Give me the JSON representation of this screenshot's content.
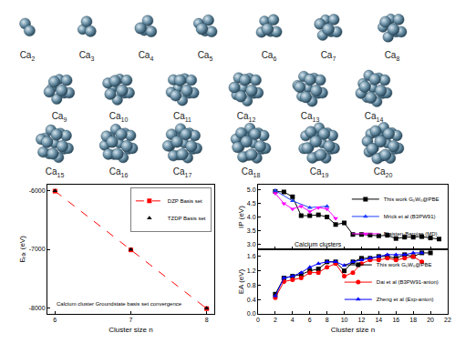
{
  "figure": {
    "clusters": [
      {
        "symbol": "Ca",
        "n": 2
      },
      {
        "symbol": "Ca",
        "n": 3
      },
      {
        "symbol": "Ca",
        "n": 4
      },
      {
        "symbol": "Ca",
        "n": 5
      },
      {
        "symbol": "Ca",
        "n": 6
      },
      {
        "symbol": "Ca",
        "n": 7
      },
      {
        "symbol": "Ca",
        "n": 8
      },
      {
        "symbol": "Ca",
        "n": 9
      },
      {
        "symbol": "Ca",
        "n": 10
      },
      {
        "symbol": "Ca",
        "n": 11
      },
      {
        "symbol": "Ca",
        "n": 12
      },
      {
        "symbol": "Ca",
        "n": 13
      },
      {
        "symbol": "Ca",
        "n": 14
      },
      {
        "symbol": "Ca",
        "n": 15
      },
      {
        "symbol": "Ca",
        "n": 16
      },
      {
        "symbol": "Ca",
        "n": 17
      },
      {
        "symbol": "Ca",
        "n": 18
      },
      {
        "symbol": "Ca",
        "n": 19
      },
      {
        "symbol": "Ca",
        "n": 20
      }
    ]
  },
  "chart_data": [
    {
      "type": "line",
      "xlabel": "Cluster size n",
      "ylabel": "Eₜₒₜ (eV)",
      "annotation": "Calcium cluster Groundstate basis set convergence",
      "x": [
        6,
        7,
        8
      ],
      "series": [
        {
          "name": "DZP Basis set",
          "color": "#ff0000",
          "marker": "square",
          "line_style": "dashed",
          "values": [
            -6010,
            -7010,
            -8010
          ]
        },
        {
          "name": "TZDP Basis set",
          "color": "#000000",
          "marker": "triangle-up",
          "line_style": "none",
          "values": [
            -6005,
            -7005,
            -8005
          ]
        }
      ],
      "xlim": [
        5.9,
        8.1
      ],
      "xticks": [
        6,
        7,
        8
      ],
      "ylim": [
        -8100,
        -5900
      ],
      "yticks": [
        -8000,
        -7000,
        -6000
      ],
      "legend": "upper right"
    },
    {
      "type": "line",
      "ylabel": "IP (eV)",
      "annotation": "Calcium clusters",
      "series": [
        {
          "name": "This work G₀W₀@PBE",
          "color": "#000000",
          "marker": "square",
          "line_style": "solid",
          "x": [
            2,
            3,
            4,
            5,
            6,
            7,
            8,
            9,
            10,
            11,
            12,
            13,
            14,
            15,
            16,
            17,
            18,
            19,
            20,
            21
          ],
          "values": [
            4.95,
            4.93,
            4.75,
            4.05,
            4.05,
            4.08,
            4.0,
            3.72,
            3.78,
            3.35,
            3.35,
            3.33,
            3.3,
            3.32,
            3.2,
            3.25,
            3.25,
            3.27,
            3.22,
            3.18
          ]
        },
        {
          "name": "Mrick et al (B3PW91)",
          "color": "#1f3fff",
          "marker": "triangle-up",
          "line_style": "solid",
          "x": [
            2,
            4,
            6,
            8
          ],
          "values": [
            4.98,
            4.6,
            4.35,
            4.4
          ]
        },
        {
          "name": "Blaisten-Barojas (MD)",
          "color": "#ff00ff",
          "marker": "triangle-down",
          "line_style": "solid",
          "x": [
            2,
            3,
            4,
            5,
            6,
            7,
            8,
            9
          ],
          "values": [
            4.88,
            4.5,
            4.3,
            4.4,
            4.2,
            4.35,
            4.3,
            3.95
          ]
        }
      ],
      "xlim": [
        0,
        22
      ],
      "xticks": [
        0,
        2,
        4,
        6,
        8,
        10,
        12,
        14,
        16,
        18,
        20,
        22
      ],
      "ylim": [
        2.8,
        5.2
      ],
      "yticks": [
        {
          "value": 3,
          "label": "3.0"
        },
        3.5,
        {
          "value": 4,
          "label": "4.0"
        },
        4.5,
        {
          "value": 5,
          "label": "5.0"
        }
      ],
      "tick_labels": "y",
      "legend": "upper right"
    },
    {
      "type": "line",
      "xlabel": "Cluster size n",
      "ylabel": "EA (eV)",
      "series": [
        {
          "name": "This work G₀W₀@PBE",
          "color": "#000000",
          "marker": "square",
          "line_style": "solid",
          "x": [
            2,
            3,
            4,
            5,
            6,
            7,
            8,
            9,
            10,
            11,
            12,
            13,
            14,
            15,
            16,
            17,
            18,
            19,
            20
          ],
          "values": [
            0.55,
            1.0,
            1.05,
            1.1,
            1.2,
            1.25,
            1.45,
            1.45,
            1.2,
            1.45,
            1.55,
            1.55,
            1.6,
            1.6,
            1.55,
            1.65,
            1.6,
            1.7,
            1.7
          ]
        },
        {
          "name": "Dai et al (B3PW91-anion)",
          "color": "#ff0000",
          "marker": "circle",
          "line_style": "solid",
          "x": [
            2,
            3,
            4,
            5,
            6,
            7,
            8,
            9,
            10,
            11,
            12,
            13,
            14,
            15,
            16,
            17,
            18,
            19
          ],
          "values": [
            0.45,
            0.9,
            0.95,
            1.0,
            1.15,
            1.15,
            1.3,
            1.4,
            1.05,
            1.15,
            1.4,
            1.5,
            1.5,
            1.55,
            1.5,
            1.55,
            1.6,
            1.45
          ]
        },
        {
          "name": "Zheng et al (Exp-anion)",
          "color": "#0000ff",
          "marker": "triangle-up",
          "line_style": "solid",
          "x": [
            2,
            3,
            4,
            5,
            6,
            7,
            8,
            9,
            10,
            11,
            12,
            13,
            14,
            15,
            16,
            17,
            18,
            19
          ],
          "values": [
            0.5,
            1.0,
            1.05,
            1.15,
            1.3,
            1.4,
            1.45,
            1.45,
            1.35,
            1.45,
            1.5,
            1.55,
            1.6,
            1.65,
            1.65,
            1.65,
            1.7,
            1.7
          ]
        }
      ],
      "xlim": [
        0,
        22
      ],
      "xticks": [
        0,
        2,
        4,
        6,
        8,
        10,
        12,
        14,
        16,
        18,
        20,
        22
      ],
      "ylim": [
        0,
        1.8
      ],
      "yticks": [
        {
          "value": 0,
          "label": "0.0"
        },
        0.4,
        0.8,
        1.2,
        1.6
      ],
      "legend": "lower right"
    }
  ]
}
